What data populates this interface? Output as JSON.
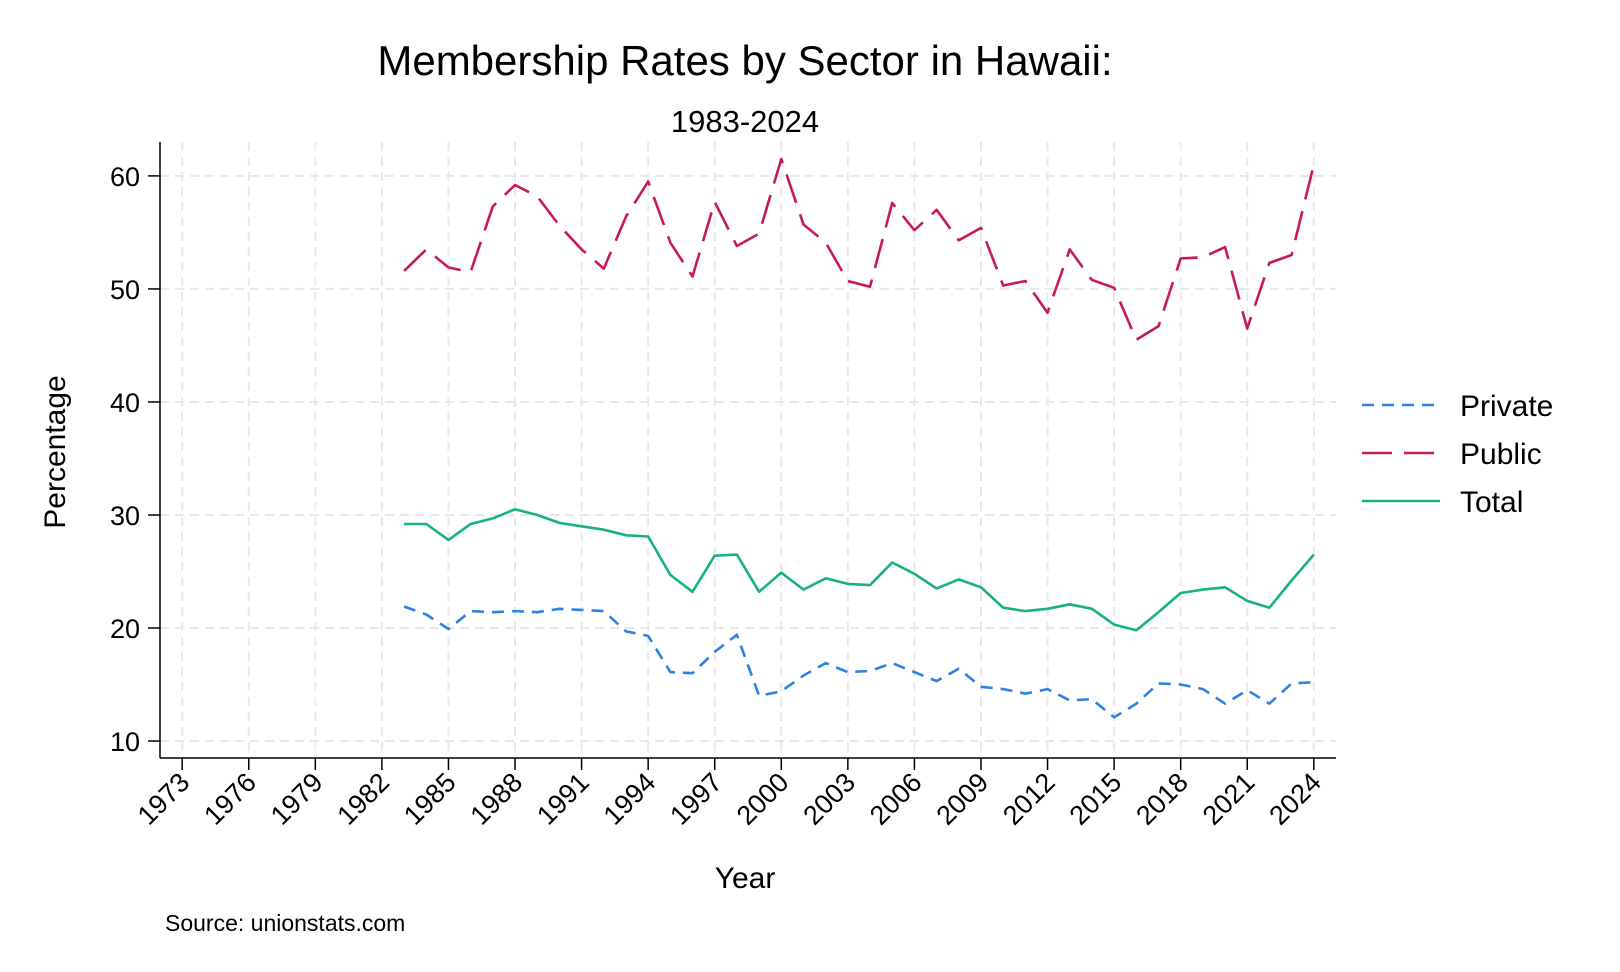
{
  "chart_data": {
    "type": "line",
    "title": "Membership Rates by Sector in Hawaii:",
    "subtitle": "1983-2024",
    "xlabel": "Year",
    "ylabel": "Percentage",
    "note": "Source: unionstats.com",
    "xlim": [
      1972,
      2025
    ],
    "ylim": [
      8.5,
      63
    ],
    "xticks": [
      1973,
      1976,
      1979,
      1982,
      1985,
      1988,
      1991,
      1994,
      1997,
      2000,
      2003,
      2006,
      2009,
      2012,
      2015,
      2018,
      2021,
      2024
    ],
    "yticks": [
      10,
      20,
      30,
      40,
      50,
      60
    ],
    "grid": true,
    "legend_position": "right",
    "x": [
      1983,
      1984,
      1985,
      1986,
      1987,
      1988,
      1989,
      1990,
      1991,
      1992,
      1993,
      1994,
      1995,
      1996,
      1997,
      1998,
      1999,
      2000,
      2001,
      2002,
      2003,
      2004,
      2005,
      2006,
      2007,
      2008,
      2009,
      2010,
      2011,
      2012,
      2013,
      2014,
      2015,
      2016,
      2017,
      2018,
      2019,
      2020,
      2021,
      2022,
      2023,
      2024
    ],
    "series": [
      {
        "name": "Private",
        "color": "#2c83e0",
        "dash": "12 8",
        "values": [
          21.9,
          21.2,
          19.9,
          21.5,
          21.4,
          21.5,
          21.4,
          21.7,
          21.6,
          21.5,
          19.7,
          19.3,
          16.1,
          16.0,
          17.9,
          19.4,
          14.0,
          14.4,
          15.8,
          16.9,
          16.1,
          16.2,
          16.9,
          16.1,
          15.3,
          16.4,
          14.8,
          14.6,
          14.2,
          14.6,
          13.6,
          13.7,
          12.1,
          13.3,
          15.1,
          15.0,
          14.6,
          13.3,
          14.5,
          13.3,
          15.1,
          15.2
        ]
      },
      {
        "name": "Public",
        "color": "#c8195c",
        "dash": "30 12",
        "values": [
          51.6,
          53.5,
          51.9,
          51.5,
          57.3,
          59.2,
          58.2,
          55.6,
          53.5,
          51.8,
          56.4,
          59.5,
          54.1,
          51.1,
          57.7,
          53.8,
          54.9,
          61.5,
          55.7,
          54.1,
          50.7,
          50.2,
          57.6,
          55.2,
          57.0,
          54.3,
          55.4,
          50.3,
          50.7,
          47.9,
          53.5,
          50.8,
          50.1,
          45.5,
          46.7,
          52.7,
          52.8,
          53.7,
          46.5,
          52.3,
          53.0,
          61.0
        ]
      },
      {
        "name": "Total",
        "color": "#16b280",
        "dash": "",
        "values": [
          29.2,
          29.2,
          27.8,
          29.2,
          29.7,
          30.5,
          30.0,
          29.3,
          29.0,
          28.7,
          28.2,
          28.1,
          24.7,
          23.2,
          26.4,
          26.5,
          23.2,
          24.9,
          23.4,
          24.4,
          23.9,
          23.8,
          25.8,
          24.8,
          23.5,
          24.3,
          23.6,
          21.8,
          21.5,
          21.7,
          22.1,
          21.7,
          20.3,
          19.8,
          21.4,
          23.1,
          23.4,
          23.6,
          22.4,
          21.8,
          24.2,
          26.5
        ]
      }
    ]
  }
}
